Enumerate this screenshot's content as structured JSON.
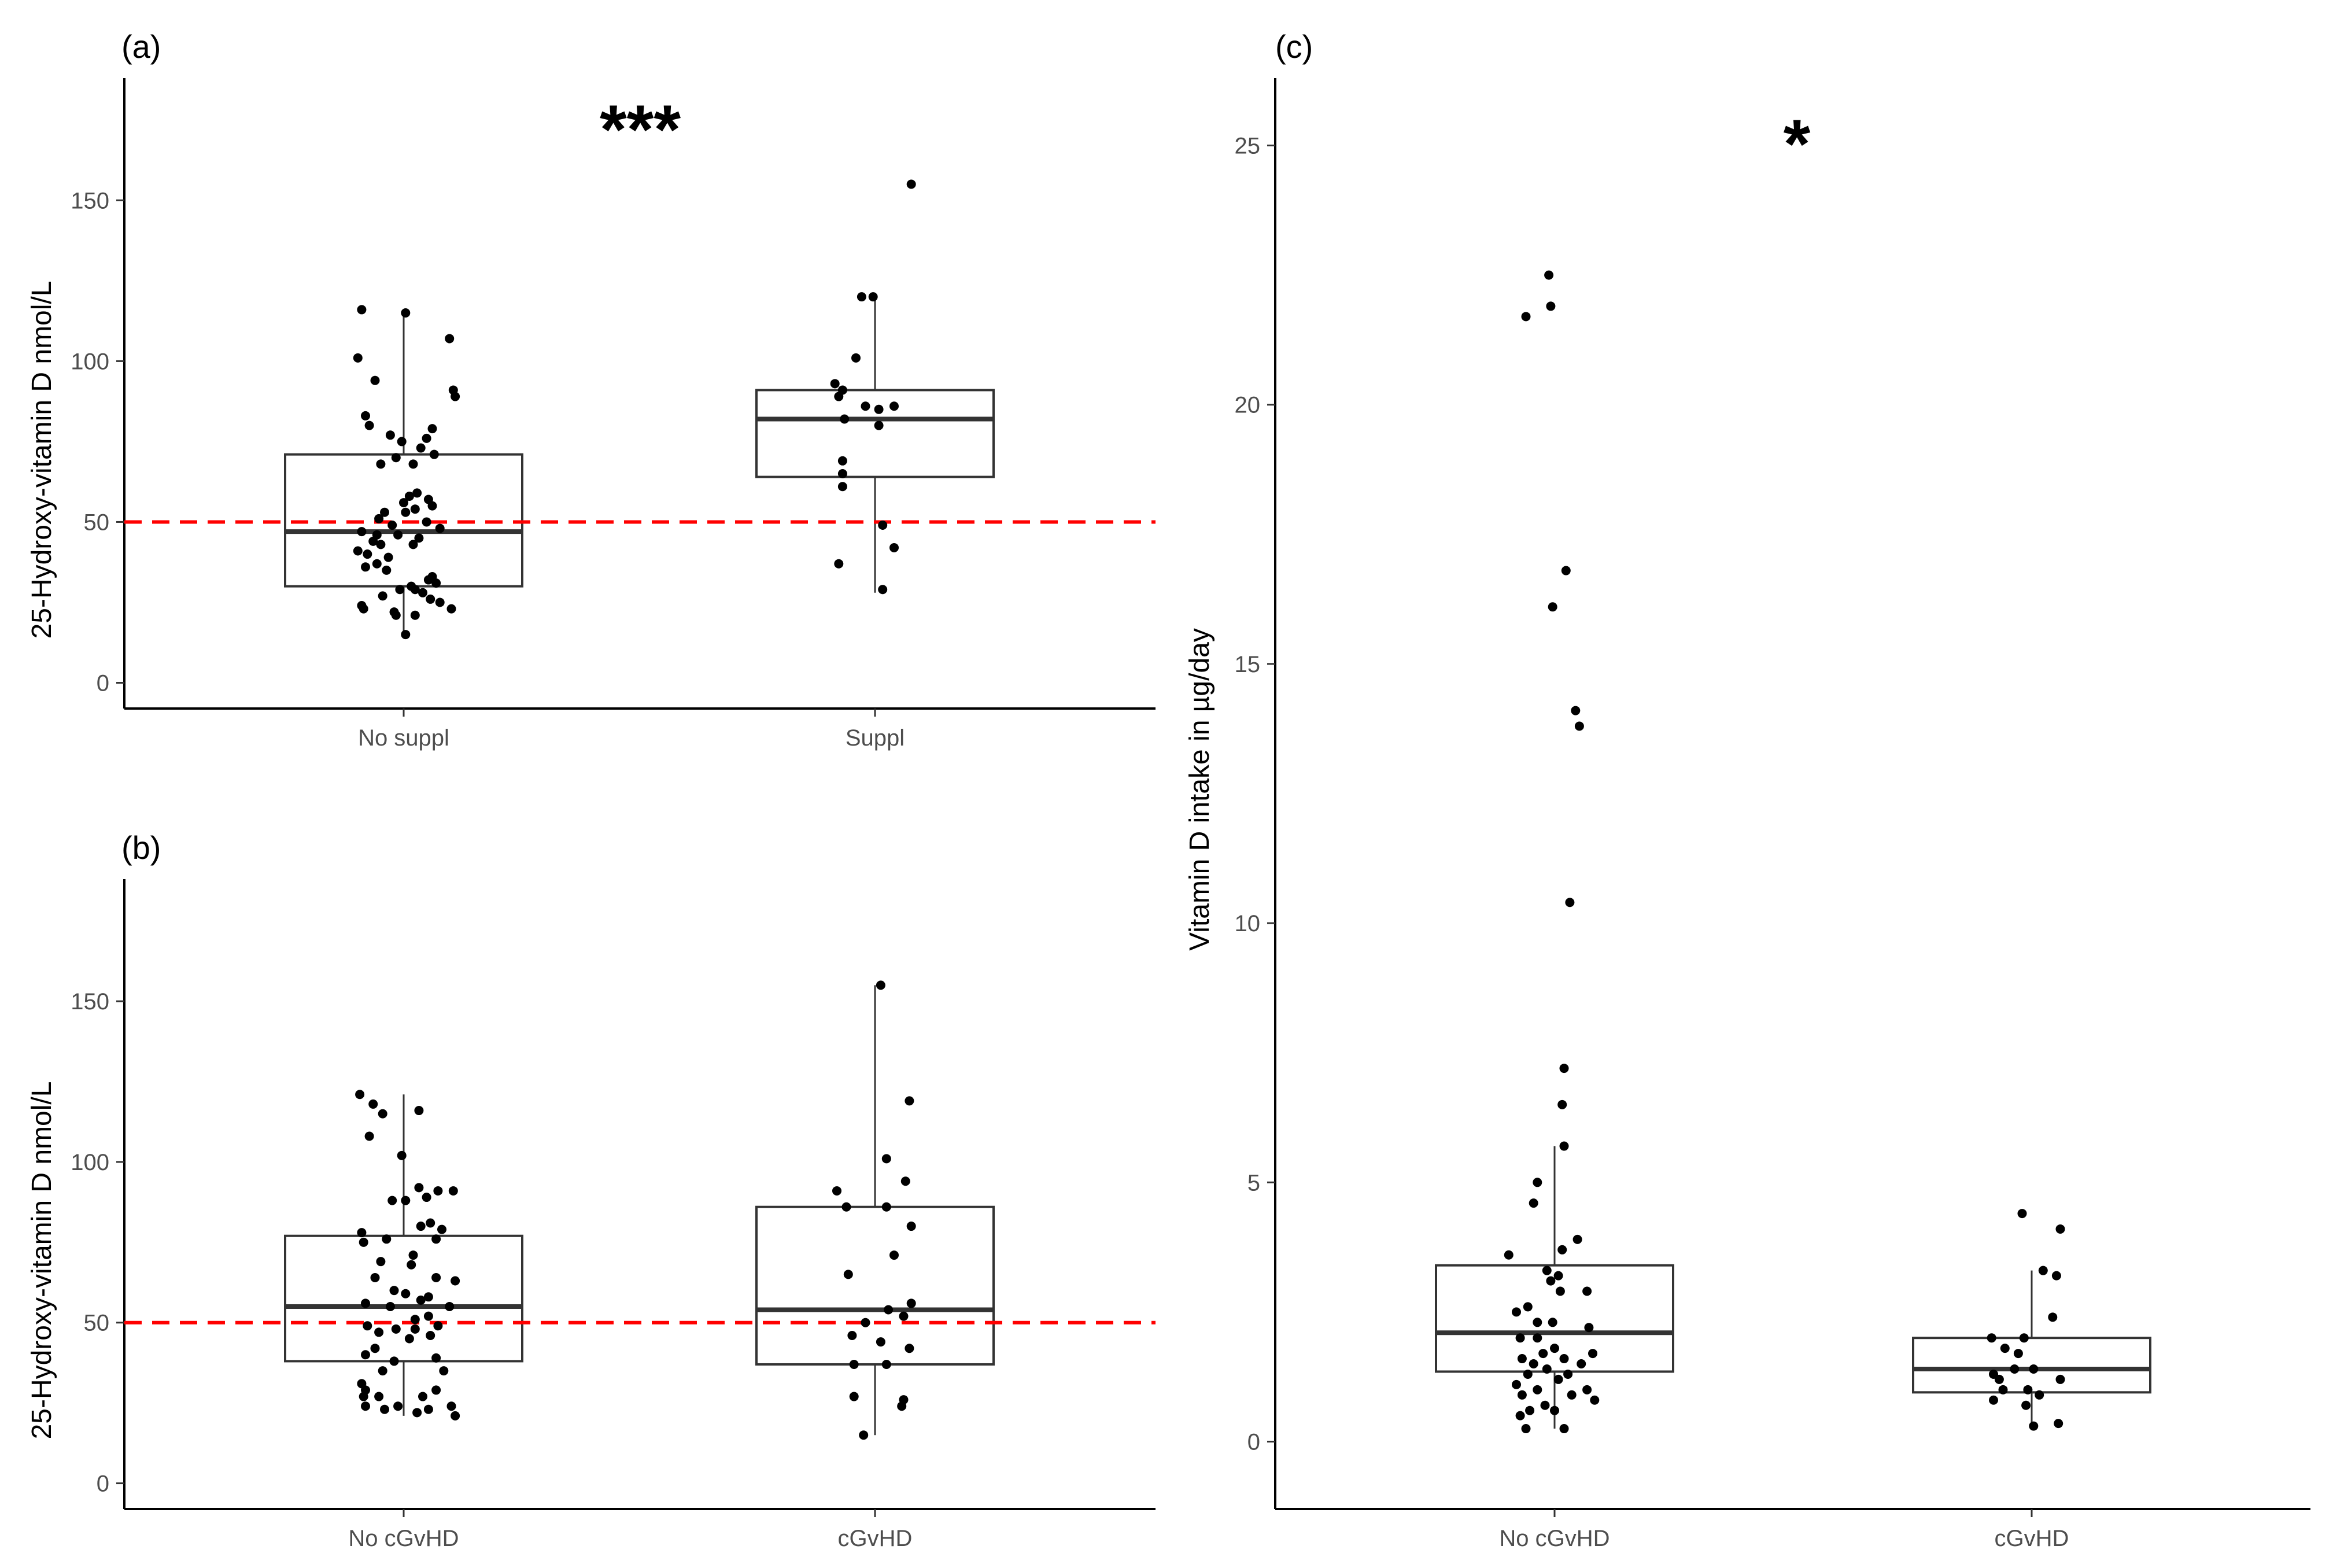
{
  "chart_data": [
    {
      "id": "a",
      "type": "box",
      "panel_label": "(a)",
      "significance": "***",
      "ylabel": "25-Hydroxy-vitamin D nmol/L",
      "ylim": [
        -8,
        188
      ],
      "yticks": [
        0,
        50,
        100,
        150
      ],
      "reference_line": 50,
      "reference_color": "#ff0000",
      "categories": [
        "No suppl",
        "Suppl"
      ],
      "boxes": [
        {
          "q1": 30,
          "median": 47,
          "q3": 71,
          "whisker_low": 15,
          "whisker_high": 116
        },
        {
          "q1": 64,
          "median": 82,
          "q3": 91,
          "whisker_low": 28,
          "whisker_high": 120
        }
      ],
      "points": [
        [
          [
            -0.22,
            116
          ],
          [
            0.01,
            115
          ],
          [
            0.24,
            107
          ],
          [
            -0.24,
            101
          ],
          [
            -0.15,
            94
          ],
          [
            0.26,
            91
          ],
          [
            0.27,
            89
          ],
          [
            -0.2,
            83
          ],
          [
            -0.18,
            80
          ],
          [
            0.15,
            79
          ],
          [
            -0.07,
            77
          ],
          [
            0.12,
            76
          ],
          [
            -0.01,
            75
          ],
          [
            0.09,
            73
          ],
          [
            0.16,
            71
          ],
          [
            -0.04,
            70
          ],
          [
            0.05,
            68
          ],
          [
            -0.12,
            68
          ],
          [
            0.07,
            59
          ],
          [
            0.03,
            58
          ],
          [
            0.13,
            57
          ],
          [
            0,
            56
          ],
          [
            0.15,
            55
          ],
          [
            0.06,
            54
          ],
          [
            0.01,
            53
          ],
          [
            -0.1,
            53
          ],
          [
            -0.13,
            51
          ],
          [
            0.12,
            50
          ],
          [
            -0.06,
            49
          ],
          [
            0.19,
            48
          ],
          [
            -0.22,
            47
          ],
          [
            -0.14,
            46
          ],
          [
            -0.03,
            46
          ],
          [
            0.08,
            45
          ],
          [
            -0.16,
            44
          ],
          [
            -0.12,
            43
          ],
          [
            0.05,
            43
          ],
          [
            -0.24,
            41
          ],
          [
            -0.19,
            40
          ],
          [
            -0.08,
            39
          ],
          [
            -0.14,
            37
          ],
          [
            -0.2,
            36
          ],
          [
            -0.09,
            35
          ],
          [
            0.15,
            33
          ],
          [
            0.13,
            32
          ],
          [
            0.17,
            31
          ],
          [
            0.04,
            30
          ],
          [
            -0.02,
            29
          ],
          [
            0.06,
            29
          ],
          [
            0.1,
            28
          ],
          [
            -0.11,
            27
          ],
          [
            0.14,
            26
          ],
          [
            0.19,
            25
          ],
          [
            -0.22,
            24
          ],
          [
            0.25,
            23
          ],
          [
            -0.21,
            23
          ],
          [
            -0.05,
            22
          ],
          [
            -0.04,
            21
          ],
          [
            0.06,
            21
          ],
          [
            0.01,
            15
          ]
        ],
        [
          [
            0.19,
            155
          ],
          [
            -0.07,
            120
          ],
          [
            -0.01,
            120
          ],
          [
            -0.1,
            101
          ],
          [
            -0.21,
            93
          ],
          [
            -0.17,
            91
          ],
          [
            -0.19,
            89
          ],
          [
            0.1,
            86
          ],
          [
            -0.05,
            86
          ],
          [
            0.02,
            85
          ],
          [
            -0.16,
            82
          ],
          [
            0.02,
            80
          ],
          [
            -0.17,
            69
          ],
          [
            -0.17,
            65
          ],
          [
            -0.17,
            61
          ],
          [
            0.04,
            49
          ],
          [
            0.1,
            42
          ],
          [
            -0.19,
            37
          ],
          [
            0.04,
            29
          ]
        ]
      ]
    },
    {
      "id": "b",
      "type": "box",
      "panel_label": "(b)",
      "significance": "",
      "ylabel": "25-Hydroxy-vitamin D nmol/L",
      "ylim": [
        -8,
        188
      ],
      "yticks": [
        0,
        50,
        100,
        150
      ],
      "reference_line": 50,
      "reference_color": "#ff0000",
      "categories": [
        "No cGvHD",
        "cGvHD"
      ],
      "boxes": [
        {
          "q1": 38,
          "median": 55,
          "q3": 77,
          "whisker_low": 21,
          "whisker_high": 121
        },
        {
          "q1": 37,
          "median": 54,
          "q3": 86,
          "whisker_low": 15,
          "whisker_high": 155
        }
      ],
      "points": [
        [
          [
            -0.23,
            121
          ],
          [
            -0.16,
            118
          ],
          [
            0.08,
            116
          ],
          [
            -0.11,
            115
          ],
          [
            -0.18,
            108
          ],
          [
            -0.01,
            102
          ],
          [
            0.08,
            92
          ],
          [
            -0.06,
            88
          ],
          [
            0.18,
            91
          ],
          [
            0.12,
            89
          ],
          [
            0.01,
            88
          ],
          [
            0.26,
            91
          ],
          [
            0.14,
            81
          ],
          [
            -0.22,
            78
          ],
          [
            0.09,
            80
          ],
          [
            -0.21,
            75
          ],
          [
            0.2,
            79
          ],
          [
            -0.09,
            76
          ],
          [
            0.17,
            76
          ],
          [
            0.05,
            71
          ],
          [
            -0.12,
            69
          ],
          [
            0.04,
            68
          ],
          [
            -0.15,
            64
          ],
          [
            0.17,
            64
          ],
          [
            0.27,
            63
          ],
          [
            -0.05,
            60
          ],
          [
            0.01,
            59
          ],
          [
            0.13,
            58
          ],
          [
            -0.2,
            56
          ],
          [
            0.09,
            57
          ],
          [
            0.24,
            55
          ],
          [
            -0.07,
            55
          ],
          [
            0.13,
            52
          ],
          [
            0.06,
            51
          ],
          [
            -0.19,
            49
          ],
          [
            0.18,
            49
          ],
          [
            -0.04,
            48
          ],
          [
            0.06,
            48
          ],
          [
            -0.13,
            47
          ],
          [
            0.14,
            46
          ],
          [
            0.03,
            45
          ],
          [
            -0.15,
            42
          ],
          [
            -0.2,
            40
          ],
          [
            -0.05,
            38
          ],
          [
            0.17,
            39
          ],
          [
            -0.11,
            35
          ],
          [
            0.21,
            35
          ],
          [
            -0.22,
            31
          ],
          [
            -0.2,
            29
          ],
          [
            0.17,
            29
          ],
          [
            -0.21,
            27
          ],
          [
            0.1,
            27
          ],
          [
            -0.13,
            27
          ],
          [
            -0.03,
            24
          ],
          [
            0.25,
            24
          ],
          [
            -0.2,
            24
          ],
          [
            0.13,
            23
          ],
          [
            -0.1,
            23
          ],
          [
            0.07,
            22
          ],
          [
            0.27,
            21
          ]
        ],
        [
          [
            0.03,
            155
          ],
          [
            0.18,
            119
          ],
          [
            0.06,
            101
          ],
          [
            0.16,
            94
          ],
          [
            -0.2,
            91
          ],
          [
            -0.15,
            86
          ],
          [
            0.06,
            86
          ],
          [
            0.19,
            80
          ],
          [
            0.1,
            71
          ],
          [
            -0.14,
            65
          ],
          [
            0.19,
            56
          ],
          [
            0.07,
            54
          ],
          [
            0.15,
            52
          ],
          [
            -0.05,
            50
          ],
          [
            -0.12,
            46
          ],
          [
            0.03,
            44
          ],
          [
            0.18,
            42
          ],
          [
            -0.11,
            37
          ],
          [
            0.06,
            37
          ],
          [
            -0.11,
            27
          ],
          [
            0.15,
            26
          ],
          [
            0.14,
            24
          ],
          [
            -0.06,
            15
          ]
        ]
      ]
    },
    {
      "id": "c",
      "type": "box",
      "panel_label": "(c)",
      "significance": "*",
      "ylabel": "Vitamin D intake  in µg/day",
      "ylim": [
        -1.3,
        26.3
      ],
      "yticks": [
        0,
        5,
        10,
        15,
        20,
        25
      ],
      "categories": [
        "No cGvHD",
        "cGvHD"
      ],
      "boxes": [
        {
          "q1": 1.35,
          "median": 2.1,
          "q3": 3.4,
          "whisker_low": 0.25,
          "whisker_high": 5.7
        },
        {
          "q1": 0.95,
          "median": 1.4,
          "q3": 2.0,
          "whisker_low": 0.3,
          "whisker_high": 3.3
        }
      ],
      "points": [
        [
          [
            -0.03,
            22.5
          ],
          [
            -0.15,
            21.7
          ],
          [
            -0.02,
            21.9
          ],
          [
            0.06,
            16.8
          ],
          [
            -0.01,
            16.1
          ],
          [
            0.11,
            14.1
          ],
          [
            0.13,
            13.8
          ],
          [
            0.08,
            10.4
          ],
          [
            0.05,
            7.2
          ],
          [
            0.04,
            6.5
          ],
          [
            0.05,
            5.7
          ],
          [
            -0.24,
            3.6
          ],
          [
            -0.09,
            5.0
          ],
          [
            -0.11,
            4.6
          ],
          [
            0.12,
            3.9
          ],
          [
            0.04,
            3.7
          ],
          [
            0.02,
            3.2
          ],
          [
            -0.04,
            3.3
          ],
          [
            0.03,
            2.9
          ],
          [
            -0.02,
            3.1
          ],
          [
            0.17,
            2.9
          ],
          [
            -0.14,
            2.6
          ],
          [
            -0.2,
            2.5
          ],
          [
            -0.09,
            2.3
          ],
          [
            -0.01,
            2.3
          ],
          [
            -0.18,
            2.0
          ],
          [
            0.18,
            2.2
          ],
          [
            -0.09,
            2.0
          ],
          [
            0,
            1.8
          ],
          [
            -0.06,
            1.7
          ],
          [
            -0.17,
            1.6
          ],
          [
            -0.11,
            1.5
          ],
          [
            0.2,
            1.7
          ],
          [
            0.05,
            1.6
          ],
          [
            -0.04,
            1.4
          ],
          [
            -0.14,
            1.3
          ],
          [
            0.14,
            1.5
          ],
          [
            0.02,
            1.2
          ],
          [
            -0.2,
            1.1
          ],
          [
            0.07,
            1.3
          ],
          [
            0.17,
            1.0
          ],
          [
            -0.09,
            1.0
          ],
          [
            -0.17,
            0.9
          ],
          [
            0.21,
            0.8
          ],
          [
            0.09,
            0.9
          ],
          [
            -0.05,
            0.7
          ],
          [
            0,
            0.6
          ],
          [
            -0.13,
            0.6
          ],
          [
            -0.18,
            0.5
          ],
          [
            -0.15,
            0.25
          ],
          [
            0.05,
            0.25
          ]
        ],
        [
          [
            -0.05,
            4.4
          ],
          [
            0.15,
            4.1
          ],
          [
            0.13,
            3.2
          ],
          [
            0.06,
            3.3
          ],
          [
            0.11,
            2.4
          ],
          [
            -0.21,
            2.0
          ],
          [
            -0.04,
            2.0
          ],
          [
            -0.07,
            1.7
          ],
          [
            -0.14,
            1.8
          ],
          [
            -0.2,
            1.3
          ],
          [
            0.01,
            1.4
          ],
          [
            -0.09,
            1.4
          ],
          [
            -0.17,
            1.2
          ],
          [
            -0.15,
            1.0
          ],
          [
            0.15,
            1.2
          ],
          [
            -0.2,
            0.8
          ],
          [
            -0.02,
            1.0
          ],
          [
            0.04,
            0.9
          ],
          [
            -0.03,
            0.7
          ],
          [
            0.01,
            0.3
          ],
          [
            0.14,
            0.35
          ]
        ]
      ]
    }
  ]
}
